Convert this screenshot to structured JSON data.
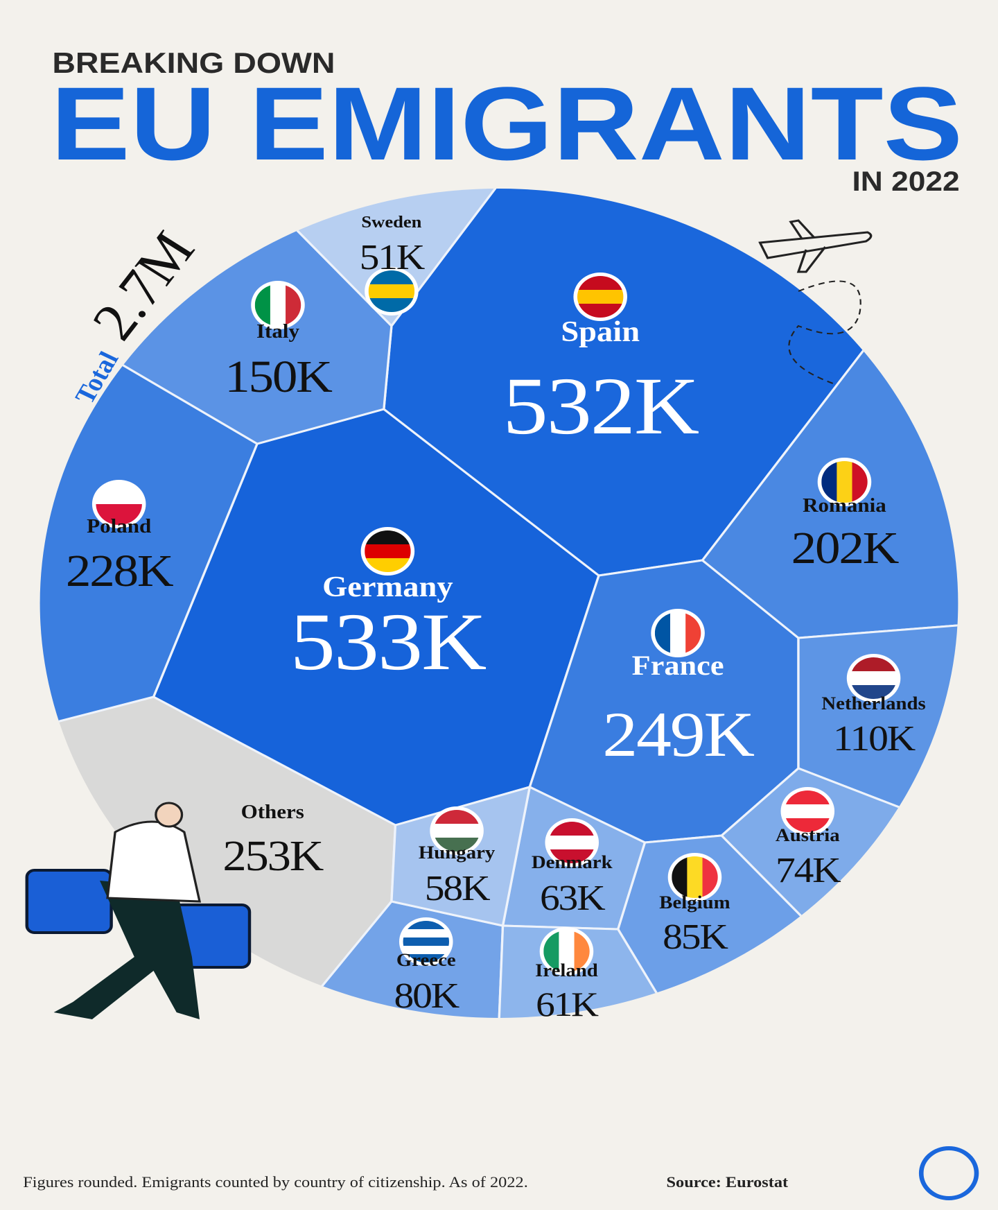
{
  "chart_data": {
    "type": "voronoi",
    "kicker": "BREAKING DOWN",
    "title": "EU EMIGRANTS",
    "subtitle": "IN 2022",
    "total_label": "Total",
    "total": "2.7M",
    "categories": [
      "Germany",
      "Spain",
      "Others",
      "France",
      "Poland",
      "Romania",
      "Italy",
      "Netherlands",
      "Belgium",
      "Greece",
      "Austria",
      "Denmark",
      "Ireland",
      "Hungary",
      "Sweden"
    ],
    "values": [
      533,
      532,
      253,
      249,
      228,
      202,
      150,
      110,
      85,
      80,
      74,
      63,
      61,
      58,
      51
    ],
    "value_labels": [
      "533K",
      "532K",
      "253K",
      "249K",
      "228K",
      "202K",
      "150K",
      "110K",
      "85K",
      "80K",
      "74K",
      "63K",
      "61K",
      "58K",
      "51K"
    ],
    "colors": [
      "#1663da",
      "#1a67dc",
      "#d9d9d8",
      "#3a7de0",
      "#3b7ee0",
      "#4a88e2",
      "#5b93e5",
      "#5d95e5",
      "#6c9fe8",
      "#73a3e8",
      "#7eabea",
      "#86b0eb",
      "#8db5ec",
      "#a6c4ef",
      "#b7cff1"
    ],
    "note": "Figures rounded. Emigrants counted by country of citizenship. As of 2022.",
    "source": "Source: Eurostat"
  }
}
